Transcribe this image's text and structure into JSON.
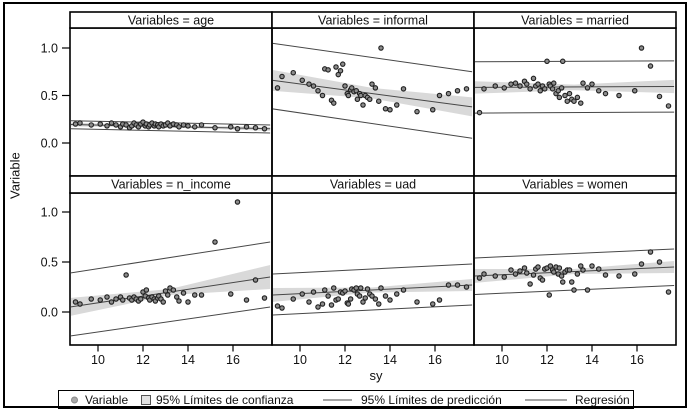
{
  "figure": {
    "ylabel": "Variable",
    "xlabel": "sy"
  },
  "legend": {
    "items": [
      {
        "marker": "dot",
        "label": "Variable"
      },
      {
        "marker": "square",
        "label": "95% Límites de confianza"
      },
      {
        "marker": "line",
        "label": "95% Límites de predicción"
      },
      {
        "marker": "line",
        "label": "Regresión"
      }
    ]
  },
  "chart_data": {
    "type": "scatter",
    "facet_by": "Variables",
    "x_variable": "sy",
    "y_variable": "Variable",
    "layout": {
      "rows": 2,
      "cols": 3,
      "grid": false,
      "legend_position": "bottom"
    },
    "x_range": [
      8.76,
      17.65
    ],
    "y_display_range": [
      -0.35,
      1.2
    ],
    "x_ticks": [
      {
        "label": "10",
        "value": 10
      },
      {
        "label": "12",
        "value": 12
      },
      {
        "label": "14",
        "value": 14
      },
      {
        "label": "16",
        "value": 16
      }
    ],
    "y_ticks": [
      {
        "label": "1.0",
        "value": 1.0
      },
      {
        "label": "0.5",
        "value": 0.5
      },
      {
        "label": "0.0",
        "value": 0.0
      }
    ],
    "colors": {
      "confidence_band": "#d9d9d9",
      "line": "#474747",
      "point_fill": "#8c8c8c",
      "point_stroke": "#1f1f1f",
      "panel_border": "#000000"
    },
    "x_sample": [
      9.0,
      9.2,
      9.7,
      10.1,
      10.4,
      10.6,
      10.8,
      11.0,
      11.1,
      11.25,
      11.4,
      11.5,
      11.6,
      11.7,
      11.8,
      11.9,
      12.0,
      12.1,
      12.15,
      12.25,
      12.3,
      12.4,
      12.5,
      12.55,
      12.65,
      12.7,
      12.8,
      12.9,
      13.0,
      13.1,
      13.2,
      13.35,
      13.5,
      13.6,
      13.8,
      14.0,
      14.3,
      14.6,
      15.2,
      15.9,
      16.2,
      16.6,
      17.0,
      17.4
    ],
    "panels": [
      {
        "title": "Variables = age",
        "regression": {
          "x": [
            8.76,
            17.65
          ],
          "y": [
            0.195,
            0.15
          ]
        },
        "prediction_upper": {
          "x": [
            8.76,
            17.65
          ],
          "y": [
            0.235,
            0.19
          ]
        },
        "prediction_lower": {
          "x": [
            8.76,
            17.65
          ],
          "y": [
            0.15,
            0.105
          ]
        },
        "confidence": {
          "x": [
            8.76,
            13.2,
            17.65
          ],
          "upper": [
            0.215,
            0.182,
            0.17
          ],
          "lower": [
            0.175,
            0.162,
            0.128
          ]
        },
        "y": [
          0.2,
          0.21,
          0.19,
          0.2,
          0.18,
          0.21,
          0.19,
          0.17,
          0.2,
          0.19,
          0.16,
          0.18,
          0.21,
          0.19,
          0.17,
          0.2,
          0.22,
          0.18,
          0.2,
          0.17,
          0.19,
          0.21,
          0.18,
          0.2,
          0.19,
          0.17,
          0.2,
          0.18,
          0.19,
          0.21,
          0.18,
          0.2,
          0.19,
          0.17,
          0.19,
          0.18,
          0.17,
          0.19,
          0.16,
          0.17,
          0.15,
          0.17,
          0.16,
          0.15
        ]
      },
      {
        "title": "Variables = informal",
        "regression": {
          "x": [
            8.76,
            17.65
          ],
          "y": [
            0.66,
            0.38
          ]
        },
        "prediction_upper": {
          "x": [
            8.76,
            17.65
          ],
          "y": [
            1.05,
            0.75
          ]
        },
        "prediction_lower": {
          "x": [
            8.76,
            17.65
          ],
          "y": [
            0.36,
            0.05
          ]
        },
        "confidence": {
          "x": [
            8.76,
            13.2,
            17.65
          ],
          "upper": [
            0.77,
            0.58,
            0.48
          ],
          "lower": [
            0.55,
            0.47,
            0.28
          ]
        },
        "y": [
          0.58,
          0.7,
          0.74,
          0.66,
          0.62,
          0.6,
          0.55,
          0.5,
          0.78,
          0.77,
          0.45,
          0.42,
          0.8,
          0.72,
          0.76,
          0.83,
          0.6,
          0.52,
          0.5,
          0.56,
          0.58,
          0.54,
          0.55,
          0.46,
          0.52,
          0.5,
          0.4,
          0.5,
          0.48,
          0.46,
          0.62,
          0.58,
          0.44,
          1.0,
          0.36,
          0.35,
          0.4,
          0.57,
          0.33,
          0.35,
          0.5,
          0.52,
          0.55,
          0.57
        ]
      },
      {
        "title": "Variables = married",
        "regression": {
          "x": [
            8.76,
            17.65
          ],
          "y": [
            0.585,
            0.595
          ]
        },
        "prediction_upper": {
          "x": [
            8.76,
            17.65
          ],
          "y": [
            0.855,
            0.865
          ]
        },
        "prediction_lower": {
          "x": [
            8.76,
            17.65
          ],
          "y": [
            0.315,
            0.325
          ]
        },
        "confidence": {
          "x": [
            8.76,
            13.2,
            17.65
          ],
          "upper": [
            0.65,
            0.615,
            0.665
          ],
          "lower": [
            0.52,
            0.555,
            0.525
          ]
        },
        "y": [
          0.32,
          0.57,
          0.6,
          0.58,
          0.62,
          0.63,
          0.6,
          0.65,
          0.62,
          0.57,
          0.68,
          0.6,
          0.62,
          0.55,
          0.6,
          0.57,
          0.86,
          0.62,
          0.6,
          0.57,
          0.63,
          0.52,
          0.55,
          0.48,
          0.58,
          0.86,
          0.5,
          0.44,
          0.52,
          0.46,
          0.44,
          0.48,
          0.42,
          0.63,
          0.58,
          0.62,
          0.55,
          0.52,
          0.5,
          0.55,
          1.0,
          0.81,
          0.49,
          0.39
        ]
      },
      {
        "title": "Variables = n_income",
        "regression": {
          "x": [
            8.76,
            17.65
          ],
          "y": [
            0.05,
            0.35
          ]
        },
        "prediction_upper": {
          "x": [
            8.76,
            17.65
          ],
          "y": [
            0.39,
            0.7
          ]
        },
        "prediction_lower": {
          "x": [
            8.76,
            17.65
          ],
          "y": [
            -0.24,
            0.05
          ]
        },
        "confidence": {
          "x": [
            8.76,
            13.2,
            17.65
          ],
          "upper": [
            0.14,
            0.23,
            0.47
          ],
          "lower": [
            -0.04,
            0.17,
            0.23
          ]
        },
        "y": [
          0.1,
          0.08,
          0.13,
          0.12,
          0.15,
          0.1,
          0.13,
          0.15,
          0.12,
          0.37,
          0.14,
          0.12,
          0.15,
          0.13,
          0.11,
          0.13,
          0.2,
          0.16,
          0.22,
          0.14,
          0.12,
          0.15,
          0.13,
          0.11,
          0.14,
          0.16,
          0.13,
          0.1,
          0.21,
          0.17,
          0.24,
          0.22,
          0.15,
          0.11,
          0.19,
          0.1,
          0.17,
          0.17,
          0.7,
          0.18,
          1.1,
          0.12,
          0.32,
          0.14
        ]
      },
      {
        "title": "Variables = uad",
        "regression": {
          "x": [
            8.76,
            17.65
          ],
          "y": [
            0.17,
            0.27
          ]
        },
        "prediction_upper": {
          "x": [
            8.76,
            17.65
          ],
          "y": [
            0.38,
            0.48
          ]
        },
        "prediction_lower": {
          "x": [
            8.76,
            17.65
          ],
          "y": [
            -0.03,
            0.07
          ]
        },
        "confidence": {
          "x": [
            8.76,
            13.2,
            17.65
          ],
          "upper": [
            0.24,
            0.245,
            0.33
          ],
          "lower": [
            0.1,
            0.195,
            0.21
          ]
        },
        "y": [
          0.06,
          0.04,
          0.13,
          0.18,
          0.1,
          0.2,
          0.05,
          0.08,
          0.22,
          0.16,
          0.07,
          0.24,
          0.12,
          0.13,
          0.2,
          0.19,
          0.21,
          0.09,
          0.08,
          0.13,
          0.23,
          0.22,
          0.24,
          0.18,
          0.16,
          0.24,
          0.1,
          0.14,
          0.23,
          0.18,
          0.16,
          0.13,
          0.08,
          0.24,
          0.16,
          0.12,
          0.18,
          0.22,
          0.1,
          0.08,
          0.12,
          0.27,
          0.27,
          0.25
        ]
      },
      {
        "title": "Variables = women",
        "regression": {
          "x": [
            8.76,
            17.65
          ],
          "y": [
            0.36,
            0.45
          ]
        },
        "prediction_upper": {
          "x": [
            8.76,
            17.65
          ],
          "y": [
            0.54,
            0.63
          ]
        },
        "prediction_lower": {
          "x": [
            8.76,
            17.65
          ],
          "y": [
            0.175,
            0.265
          ]
        },
        "confidence": {
          "x": [
            8.76,
            13.2,
            17.65
          ],
          "upper": [
            0.43,
            0.43,
            0.51
          ],
          "lower": [
            0.29,
            0.38,
            0.39
          ]
        },
        "y": [
          0.34,
          0.38,
          0.36,
          0.35,
          0.42,
          0.38,
          0.41,
          0.44,
          0.39,
          0.28,
          0.37,
          0.43,
          0.45,
          0.34,
          0.32,
          0.43,
          0.44,
          0.17,
          0.46,
          0.42,
          0.4,
          0.45,
          0.38,
          0.44,
          0.36,
          0.3,
          0.4,
          0.42,
          0.42,
          0.3,
          0.22,
          0.38,
          0.46,
          0.42,
          0.22,
          0.46,
          0.43,
          0.37,
          0.36,
          0.38,
          0.48,
          0.6,
          0.5,
          0.2
        ]
      }
    ]
  }
}
